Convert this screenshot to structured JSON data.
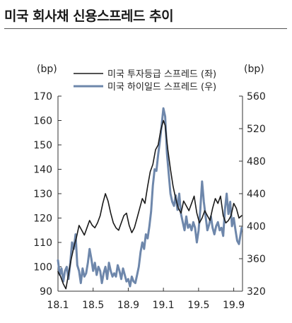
{
  "title": "미국 회사채 신용스프레드 추이",
  "chart_data": {
    "type": "line",
    "left_axis": {
      "unit": "(bp)",
      "range": [
        90,
        170
      ],
      "ticks": [
        90,
        100,
        110,
        120,
        130,
        140,
        150,
        160,
        170
      ]
    },
    "right_axis": {
      "unit": "(bp)",
      "range": [
        320,
        560
      ],
      "ticks": [
        320,
        360,
        400,
        440,
        480,
        520,
        560
      ]
    },
    "x_axis": {
      "range": [
        0,
        21
      ],
      "ticks": [
        {
          "x": 0,
          "label": "18.1"
        },
        {
          "x": 4,
          "label": "18.5"
        },
        {
          "x": 8,
          "label": "18.9"
        },
        {
          "x": 12,
          "label": "19.1"
        },
        {
          "x": 16,
          "label": "19.5"
        },
        {
          "x": 20,
          "label": "19.9"
        }
      ]
    },
    "legend_position": "top",
    "series": [
      {
        "name": "미국 투자등급 스프레드 (좌)",
        "axis": "left",
        "color": "#1a1a1a",
        "x": [
          0,
          0.3,
          0.6,
          0.9,
          1.2,
          1.5,
          1.8,
          2.1,
          2.4,
          2.7,
          3.0,
          3.3,
          3.6,
          3.9,
          4.2,
          4.5,
          4.8,
          5.1,
          5.4,
          5.7,
          6.0,
          6.3,
          6.6,
          6.9,
          7.2,
          7.5,
          7.8,
          8.1,
          8.4,
          8.7,
          9.0,
          9.3,
          9.6,
          9.9,
          10.2,
          10.5,
          10.8,
          11.1,
          11.4,
          11.7,
          12.0,
          12.2,
          12.5,
          12.8,
          13.1,
          13.4,
          13.7,
          14.0,
          14.3,
          14.6,
          14.9,
          15.2,
          15.5,
          15.8,
          16.1,
          16.4,
          16.7,
          17.0,
          17.3,
          17.6,
          17.9,
          18.2,
          18.5,
          18.8,
          19.1,
          19.4,
          19.7,
          20.0,
          20.3,
          20.6,
          20.9
        ],
        "values": [
          98,
          96,
          93,
          91,
          97,
          103,
          108,
          112,
          117,
          115,
          113,
          116,
          119,
          117,
          116,
          118,
          121,
          126,
          130,
          127,
          122,
          118,
          116,
          115,
          118,
          121,
          122,
          117,
          114,
          116,
          120,
          124,
          128,
          126,
          133,
          139,
          142,
          148,
          150,
          156,
          160,
          158,
          148,
          140,
          133,
          128,
          124,
          122,
          127,
          125,
          123,
          126,
          129,
          122,
          118,
          120,
          123,
          121,
          119,
          124,
          128,
          126,
          129,
          121,
          118,
          119,
          121,
          126,
          124,
          120,
          121
        ]
      },
      {
        "name": "미국 하이일드 스프레드 (우)",
        "axis": "right",
        "color": "#6e87ab",
        "x": [
          0,
          0.2,
          0.4,
          0.6,
          0.8,
          1.0,
          1.2,
          1.4,
          1.6,
          1.8,
          2.0,
          2.2,
          2.4,
          2.6,
          2.8,
          3.0,
          3.2,
          3.4,
          3.6,
          3.8,
          4.0,
          4.2,
          4.4,
          4.6,
          4.8,
          5.0,
          5.2,
          5.4,
          5.6,
          5.8,
          6.0,
          6.2,
          6.4,
          6.6,
          6.8,
          7.0,
          7.2,
          7.4,
          7.6,
          7.8,
          8.0,
          8.2,
          8.4,
          8.6,
          8.8,
          9.0,
          9.2,
          9.4,
          9.6,
          9.8,
          10.0,
          10.2,
          10.4,
          10.6,
          10.8,
          11.0,
          11.2,
          11.4,
          11.6,
          11.8,
          12.0,
          12.2,
          12.4,
          12.6,
          12.8,
          13.0,
          13.2,
          13.4,
          13.6,
          13.8,
          14.0,
          14.2,
          14.4,
          14.6,
          14.8,
          15.0,
          15.2,
          15.4,
          15.6,
          15.8,
          16.0,
          16.2,
          16.4,
          16.6,
          16.8,
          17.0,
          17.2,
          17.4,
          17.6,
          17.8,
          18.0,
          18.2,
          18.4,
          18.6,
          18.8,
          19.0,
          19.2,
          19.4,
          19.6,
          19.8,
          20.0,
          20.2,
          20.4,
          20.6,
          20.9
        ],
        "values": [
          358,
          340,
          348,
          332,
          345,
          350,
          335,
          355,
          380,
          372,
          390,
          352,
          345,
          330,
          348,
          338,
          342,
          355,
          372,
          360,
          345,
          355,
          340,
          350,
          345,
          330,
          342,
          350,
          335,
          355,
          345,
          338,
          342,
          338,
          352,
          345,
          335,
          348,
          340,
          332,
          335,
          326,
          338,
          332,
          330,
          340,
          350,
          368,
          380,
          372,
          390,
          385,
          400,
          418,
          450,
          470,
          468,
          488,
          505,
          525,
          545,
          535,
          490,
          465,
          440,
          430,
          425,
          438,
          420,
          440,
          415,
          405,
          395,
          412,
          398,
          402,
          395,
          405,
          398,
          380,
          395,
          420,
          455,
          430,
          412,
          395,
          402,
          412,
          398,
          390,
          400,
          405,
          395,
          398,
          388,
          420,
          440,
          415,
          430,
          400,
          410,
          395,
          382,
          378,
          398
        ]
      }
    ]
  }
}
